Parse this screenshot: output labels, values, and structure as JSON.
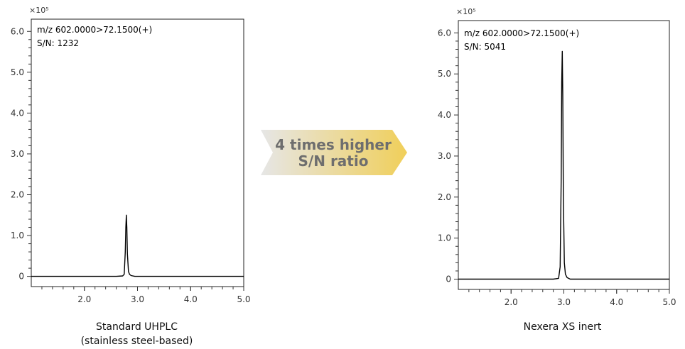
{
  "arrow": {
    "line1": "4 times higher",
    "line2": "S/N ratio",
    "colors": {
      "start": "#e6e6e6",
      "end": "#f0cf5a"
    }
  },
  "chart_data": [
    {
      "type": "line",
      "title": "Standard UHPLC",
      "subtitle": "(stainless steel-based)",
      "annotation": [
        "m/z 602.0000>72.1500(+)",
        "S/N: 1232"
      ],
      "y_multiplier": "×10⁵",
      "xlim": [
        1.0,
        5.0
      ],
      "ylim": [
        -0.25,
        6.3
      ],
      "xticks": [
        2.0,
        3.0,
        4.0,
        5.0
      ],
      "xtick_labels": [
        "2.0",
        "3.0",
        "4.0",
        "5.0"
      ],
      "yticks": [
        0,
        1.0,
        2.0,
        3.0,
        4.0,
        5.0,
        6.0
      ],
      "ytick_labels": [
        "0",
        "1.0",
        "2.0",
        "3.0",
        "4.0",
        "5.0",
        "6.0"
      ],
      "grid": false,
      "series": [
        {
          "x": [
            1.0,
            2.6,
            2.72,
            2.75,
            2.77,
            2.78,
            2.79,
            2.8,
            2.81,
            2.83,
            2.85,
            2.88,
            2.95,
            5.0
          ],
          "y": [
            0.0,
            0.0,
            0.01,
            0.05,
            0.6,
            1.2,
            1.5,
            1.2,
            0.55,
            0.12,
            0.05,
            0.02,
            0.0,
            0.0
          ]
        }
      ]
    },
    {
      "type": "line",
      "title": "Nexera XS inert",
      "annotation": [
        "m/z 602.0000>72.1500(+)",
        "S/N: 5041"
      ],
      "y_multiplier": "×10⁵",
      "xlim": [
        1.0,
        5.0
      ],
      "ylim": [
        -0.25,
        6.3
      ],
      "xticks": [
        2.0,
        3.0,
        4.0,
        5.0
      ],
      "xtick_labels": [
        "2.0",
        "3.0",
        "4.0",
        "5.0"
      ],
      "yticks": [
        0,
        1.0,
        2.0,
        3.0,
        4.0,
        5.0,
        6.0
      ],
      "ytick_labels": [
        "0",
        "1.0",
        "2.0",
        "3.0",
        "4.0",
        "5.0",
        "6.0"
      ],
      "grid": false,
      "series": [
        {
          "x": [
            1.0,
            2.8,
            2.9,
            2.93,
            2.95,
            2.96,
            2.97,
            2.98,
            2.99,
            3.01,
            3.03,
            3.06,
            3.12,
            5.0
          ],
          "y": [
            0.0,
            0.0,
            0.02,
            0.3,
            2.5,
            4.8,
            5.55,
            4.5,
            2.0,
            0.4,
            0.12,
            0.04,
            0.0,
            0.0
          ]
        }
      ]
    }
  ]
}
